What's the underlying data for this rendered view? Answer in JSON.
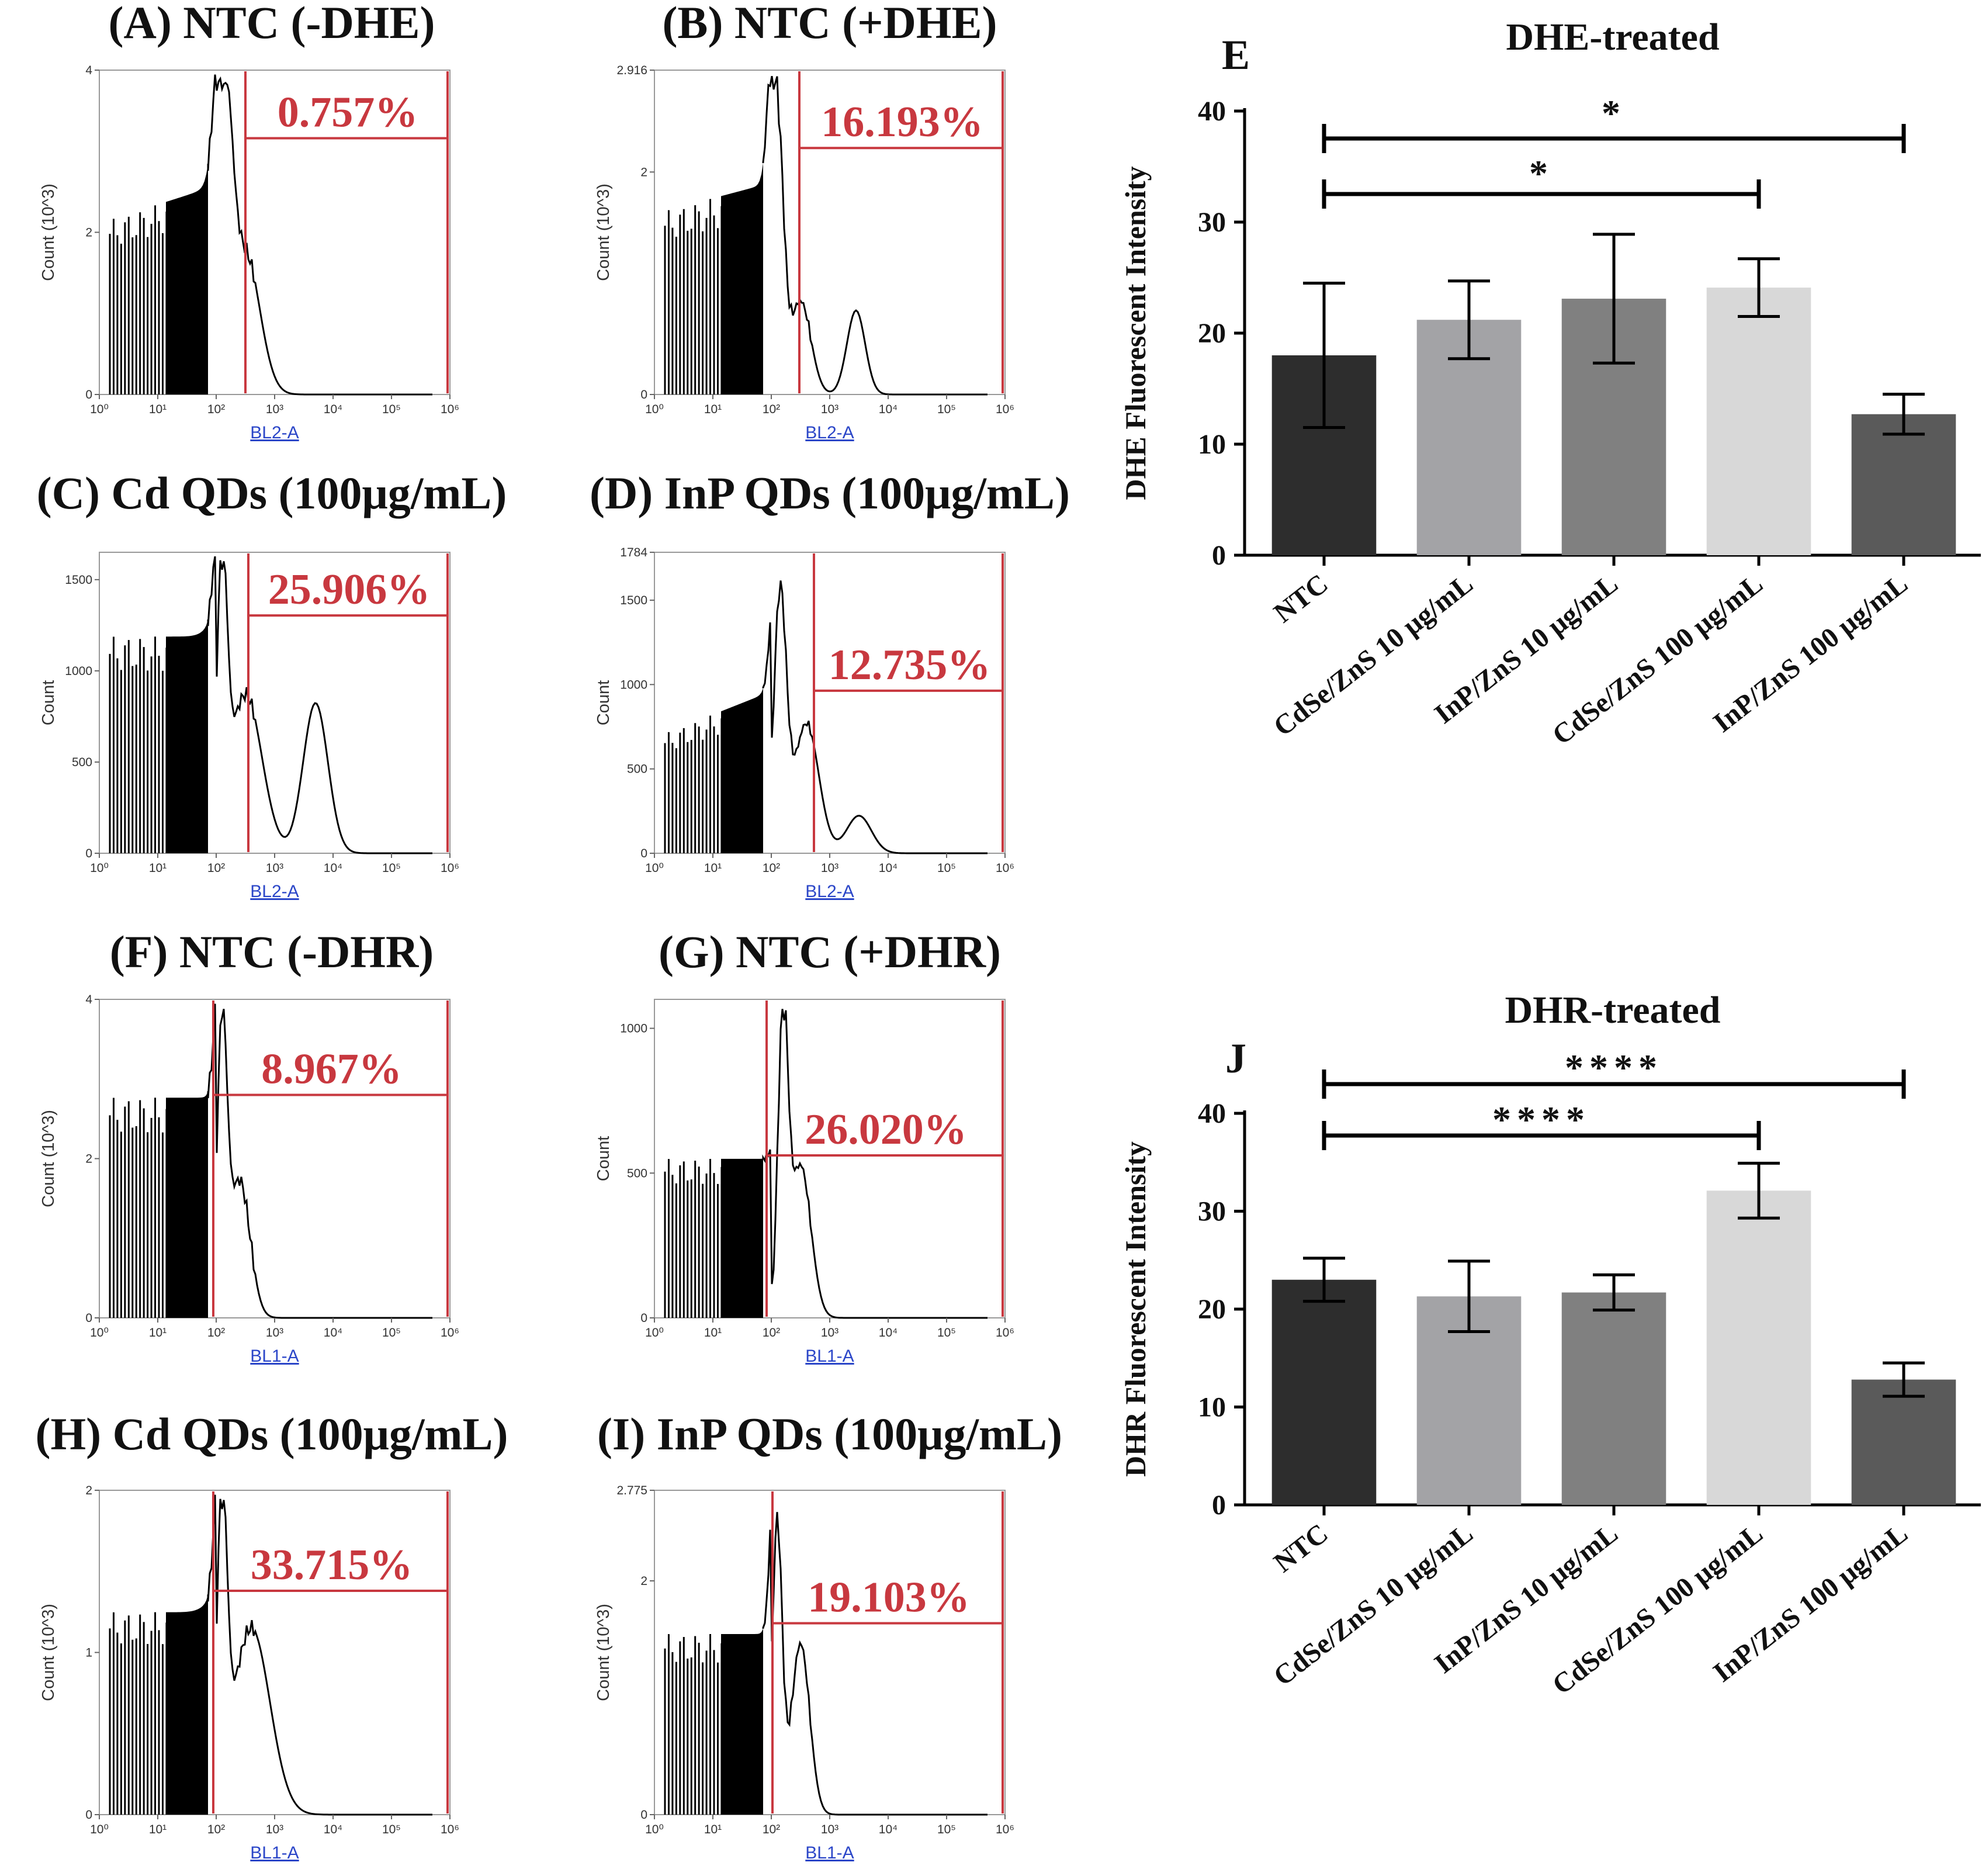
{
  "flow_panels": [
    {
      "id": "A",
      "title": "(A) NTC (-DHE)",
      "gate": "0.757%",
      "ylabel": "Count (10^3)",
      "xlabel": "BL2-A",
      "yticks": [
        "0",
        "2",
        "4"
      ],
      "ymax": 4,
      "gate_x": 1.0,
      "gate_y": 3.1
    },
    {
      "id": "B",
      "title": "(B) NTC (+DHE)",
      "gate": "16.193%",
      "ylabel": "Count (10^3)",
      "xlabel": "BL2-A",
      "yticks": [
        "0",
        "2",
        "2.916"
      ],
      "ymax": 2.916,
      "gate_x": 0.8,
      "gate_y": 2.2
    },
    {
      "id": "C",
      "title": "(C) Cd QDs (100μg/mL)",
      "gate": "25.906%",
      "ylabel": "Count",
      "xlabel": "BL2-A",
      "yticks": [
        "0",
        "500",
        "1000",
        "1500"
      ],
      "ymax": 1650,
      "gate_x": 0.8,
      "gate_y": 1290
    },
    {
      "id": "D",
      "title": "(D) InP QDs (100μg/mL)",
      "gate": "12.735%",
      "ylabel": "Count",
      "xlabel": "BL2-A",
      "yticks": [
        "0",
        "500",
        "1000",
        "1500",
        "1784"
      ],
      "ymax": 1784,
      "gate_x": 1.0,
      "gate_y": 830
    },
    {
      "id": "F",
      "title": "(F) NTC (-DHR)",
      "gate": "8.967%",
      "ylabel": "Count (10^3)",
      "xlabel": "BL1-A",
      "yticks": [
        "0",
        "2",
        "4"
      ],
      "ymax": 4,
      "gate_x": 0.25,
      "gate_y": 2.8
    },
    {
      "id": "G",
      "title": "(G) NTC (+DHR)",
      "gate": "26.020%",
      "ylabel": "Count",
      "xlabel": "BL1-A",
      "yticks": [
        "0",
        "500",
        "1000"
      ],
      "ymax": 1100,
      "gate_x": 0.25,
      "gate_y": 550
    },
    {
      "id": "H",
      "title": "(H) Cd QDs (100μg/mL)",
      "gate": "33.715%",
      "ylabel": "Count (10^3)",
      "xlabel": "BL1-A",
      "yticks": [
        "0",
        "1",
        "2"
      ],
      "ymax": 2,
      "gate_x": 0.25,
      "gate_y": 1.37
    },
    {
      "id": "I",
      "title": "(I) InP QDs (100μg/mL)",
      "gate": "19.103%",
      "ylabel": "Count (10^3)",
      "xlabel": "BL1-A",
      "yticks": [
        "0",
        "2",
        "2.775"
      ],
      "ymax": 2.775,
      "gate_x": 0.25,
      "gate_y": 1.62
    }
  ],
  "flow_xticks": [
    "10⁰",
    "10¹",
    "10²",
    "10³",
    "10⁴",
    "10⁵",
    "10⁶"
  ],
  "chart_data": [
    {
      "type": "bar",
      "letter": "E",
      "title": "DHE-treated",
      "ylabel": "DHE Fluorescent Intensity",
      "ylim": [
        0,
        40
      ],
      "yticks": [
        "0",
        "10",
        "20",
        "30",
        "40"
      ],
      "categories": [
        "NTC",
        "CdSe/ZnS 10 μg/mL",
        "InP/ZnS 10 μg/mL",
        "CdSe/ZnS 100 μg/mL",
        "InP/ZnS 100 μg/mL"
      ],
      "values": [
        18,
        21.2,
        23.1,
        24.1,
        12.7
      ],
      "errors": [
        6.5,
        3.5,
        5.8,
        2.6,
        1.8
      ],
      "significance": [
        {
          "from": 0,
          "to": 4,
          "label": "*"
        },
        {
          "from": 0,
          "to": 3,
          "label": "*"
        }
      ]
    },
    {
      "type": "bar",
      "letter": "J",
      "title": "DHR-treated",
      "ylabel": "DHR Fluorescent Intensity",
      "ylim": [
        0,
        40
      ],
      "yticks": [
        "0",
        "10",
        "20",
        "30",
        "40"
      ],
      "categories": [
        "NTC",
        "CdSe/ZnS 10 μg/mL",
        "InP/ZnS 10 μg/mL",
        "CdSe/ZnS 100 μg/mL",
        "InP/ZnS 100 μg/mL"
      ],
      "values": [
        23,
        21.3,
        21.7,
        32.1,
        12.8
      ],
      "errors": [
        2.2,
        3.6,
        1.8,
        2.8,
        1.7
      ],
      "significance": [
        {
          "from": 0,
          "to": 4,
          "label": "****"
        },
        {
          "from": 0,
          "to": 3,
          "label": "****"
        }
      ]
    }
  ],
  "colors": {
    "gate": "#c8383f",
    "bars": [
      "#2d2d2d",
      "#a3a3a6",
      "#808080",
      "#d8d8d8",
      "#5a5a5a"
    ],
    "axis_link": "#2b46c8"
  }
}
